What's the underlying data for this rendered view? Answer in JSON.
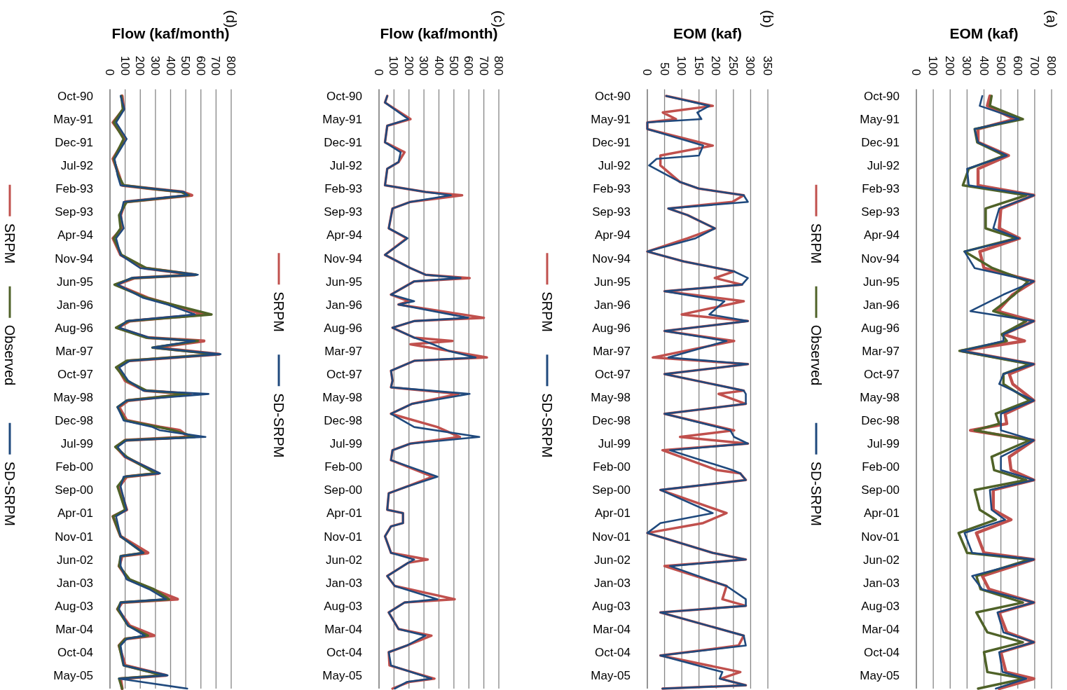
{
  "chart_data": [
    {
      "type": "line",
      "orientation": "horizontal",
      "title": "(d)",
      "xlabel": "Flow (kaf/month)",
      "legend": "left",
      "grid": "x",
      "ylim": [
        "2005-09",
        "1990-08"
      ],
      "xlim": [
        0,
        800
      ],
      "xticks": [
        0,
        100,
        200,
        300,
        400,
        500,
        600,
        700,
        800
      ],
      "yticks": [
        {
          "value": "1990-10",
          "label": "Oct-90"
        },
        {
          "value": "1991-05",
          "label": "May-91"
        },
        {
          "value": "1991-12",
          "label": "Dec-91"
        },
        {
          "value": "1992-07",
          "label": "Jul-92"
        },
        {
          "value": "1993-02",
          "label": "Feb-93"
        },
        {
          "value": "1993-09",
          "label": "Sep-93"
        },
        {
          "value": "1994-04",
          "label": "Apr-94"
        },
        {
          "value": "1994-11",
          "label": "Nov-94"
        },
        {
          "value": "1995-06",
          "label": "Jun-95"
        },
        {
          "value": "1996-01",
          "label": "Jan-96"
        },
        {
          "value": "1996-08",
          "label": "Aug-96"
        },
        {
          "value": "1997-03",
          "label": "Mar-97"
        },
        {
          "value": "1997-10",
          "label": "Oct-97"
        },
        {
          "value": "1998-05",
          "label": "May-98"
        },
        {
          "value": "1998-12",
          "label": "Dec-98"
        },
        {
          "value": "1999-07",
          "label": "Jul-99"
        },
        {
          "value": "2000-02",
          "label": "Feb-00"
        },
        {
          "value": "2000-09",
          "label": "Sep-00"
        },
        {
          "value": "2001-04",
          "label": "Apr-01"
        },
        {
          "value": "2001-11",
          "label": "Nov-01"
        },
        {
          "value": "2002-06",
          "label": "Jun-02"
        },
        {
          "value": "2003-01",
          "label": "Jan-03"
        },
        {
          "value": "2003-08",
          "label": "Aug-03"
        },
        {
          "value": "2004-03",
          "label": "Mar-04"
        },
        {
          "value": "2004-10",
          "label": "Oct-04"
        },
        {
          "value": "2005-05",
          "label": "May-05"
        }
      ],
      "x": [
        "1990-10",
        "1991-02",
        "1991-06",
        "1991-11",
        "1992-05",
        "1992-10",
        "1993-01",
        "1993-02",
        "1993-03",
        "1993-04",
        "1993-06",
        "1993-10",
        "1994-02",
        "1994-05",
        "1994-10",
        "1995-02",
        "1995-04",
        "1995-05",
        "1995-07",
        "1995-11",
        "1996-01",
        "1996-04",
        "1996-06",
        "1996-08",
        "1996-11",
        "1996-12",
        "1997-02",
        "1997-04",
        "1997-06",
        "1997-08",
        "1997-12",
        "1998-03",
        "1998-04",
        "1998-06",
        "1998-08",
        "1998-12",
        "1999-02",
        "1999-03",
        "1999-05",
        "1999-06",
        "1999-08",
        "1999-11",
        "2000-04",
        "2000-05",
        "2000-08",
        "2001-03",
        "2001-05",
        "2001-11",
        "2002-04",
        "2002-05",
        "2002-08",
        "2002-12",
        "2003-03",
        "2003-06",
        "2003-07",
        "2003-09",
        "2004-02",
        "2004-05",
        "2004-06",
        "2004-08",
        "2005-02",
        "2005-05",
        "2005-06",
        "2005-09"
      ],
      "series": [
        {
          "name": "SRPM",
          "color": "#c0504d",
          "values": [
            80,
            90,
            20,
            100,
            20,
            60,
            80,
            270,
            480,
            540,
            100,
            70,
            80,
            20,
            70,
            230,
            560,
            160,
            40,
            250,
            400,
            620,
            130,
            50,
            250,
            620,
            300,
            720,
            120,
            50,
            100,
            230,
            530,
            120,
            60,
            110,
            330,
            460,
            520,
            100,
            40,
            100,
            320,
            110,
            60,
            110,
            20,
            70,
            250,
            80,
            60,
            120,
            280,
            445,
            80,
            50,
            130,
            290,
            100,
            60,
            100,
            370,
            70,
            80
          ]
        },
        {
          "name": "Observed",
          "color": "#4f6228",
          "values": [
            75,
            85,
            25,
            90,
            25,
            55,
            90,
            270,
            470,
            520,
            110,
            60,
            70,
            25,
            75,
            240,
            570,
            150,
            30,
            240,
            410,
            670,
            120,
            40,
            240,
            580,
            280,
            700,
            110,
            40,
            110,
            240,
            520,
            110,
            50,
            100,
            320,
            420,
            560,
            100,
            35,
            110,
            300,
            100,
            50,
            100,
            20,
            70,
            220,
            70,
            60,
            130,
            290,
            390,
            70,
            50,
            120,
            250,
            100,
            60,
            90,
            350,
            60,
            80
          ]
        },
        {
          "name": "SD-SRPM",
          "color": "#1f497d",
          "values": [
            70,
            95,
            40,
            110,
            30,
            50,
            70,
            280,
            490,
            510,
            90,
            70,
            90,
            40,
            70,
            200,
            580,
            140,
            50,
            220,
            380,
            560,
            110,
            60,
            260,
            560,
            280,
            730,
            130,
            60,
            120,
            220,
            650,
            110,
            50,
            90,
            280,
            330,
            630,
            110,
            50,
            100,
            330,
            90,
            70,
            110,
            40,
            70,
            220,
            70,
            70,
            110,
            260,
            370,
            70,
            60,
            120,
            230,
            110,
            70,
            90,
            380,
            60,
            510
          ]
        }
      ]
    },
    {
      "type": "line",
      "orientation": "horizontal",
      "title": "(c)",
      "xlabel": "Flow (kaf/month)",
      "legend": "left",
      "grid": "x",
      "ylim": [
        "2005-09",
        "1990-08"
      ],
      "xlim": [
        0,
        800
      ],
      "xticks": [
        0,
        100,
        200,
        300,
        400,
        500,
        600,
        700,
        800
      ],
      "yticks": [
        {
          "value": "1990-10",
          "label": "Oct-90"
        },
        {
          "value": "1991-05",
          "label": "May-91"
        },
        {
          "value": "1991-12",
          "label": "Dec-91"
        },
        {
          "value": "1992-07",
          "label": "Jul-92"
        },
        {
          "value": "1993-02",
          "label": "Feb-93"
        },
        {
          "value": "1993-09",
          "label": "Sep-93"
        },
        {
          "value": "1994-04",
          "label": "Apr-94"
        },
        {
          "value": "1994-11",
          "label": "Nov-94"
        },
        {
          "value": "1995-06",
          "label": "Jun-95"
        },
        {
          "value": "1996-01",
          "label": "Jan-96"
        },
        {
          "value": "1996-08",
          "label": "Aug-96"
        },
        {
          "value": "1997-03",
          "label": "Mar-97"
        },
        {
          "value": "1997-10",
          "label": "Oct-97"
        },
        {
          "value": "1998-05",
          "label": "May-98"
        },
        {
          "value": "1998-12",
          "label": "Dec-98"
        },
        {
          "value": "1999-07",
          "label": "Jul-99"
        },
        {
          "value": "2000-02",
          "label": "Feb-00"
        },
        {
          "value": "2000-09",
          "label": "Sep-00"
        },
        {
          "value": "2001-04",
          "label": "Apr-01"
        },
        {
          "value": "2001-11",
          "label": "Nov-01"
        },
        {
          "value": "2002-06",
          "label": "Jun-02"
        },
        {
          "value": "2003-01",
          "label": "Jan-03"
        },
        {
          "value": "2003-08",
          "label": "Aug-03"
        },
        {
          "value": "2004-03",
          "label": "Mar-04"
        },
        {
          "value": "2004-10",
          "label": "Oct-04"
        },
        {
          "value": "2005-05",
          "label": "May-05"
        }
      ],
      "x": [
        "1990-10",
        "1990-12",
        "1991-05",
        "1991-07",
        "1991-12",
        "1992-03",
        "1992-06",
        "1992-08",
        "1993-01",
        "1993-03",
        "1993-04",
        "1993-06",
        "1993-08",
        "1994-02",
        "1994-05",
        "1994-10",
        "1995-02",
        "1995-04",
        "1995-05",
        "1995-06",
        "1995-10",
        "1995-12",
        "1996-01",
        "1996-05",
        "1996-06",
        "1996-08",
        "1996-11",
        "1996-12",
        "1997-01",
        "1997-03",
        "1997-05",
        "1997-06",
        "1997-09",
        "1997-12",
        "1998-02",
        "1998-04",
        "1998-07",
        "1998-10",
        "1999-02",
        "1999-05",
        "1999-07",
        "1999-09",
        "1999-12",
        "2000-05",
        "2000-08",
        "2000-10",
        "2001-03",
        "2001-04",
        "2001-07",
        "2001-08",
        "2001-11",
        "2002-04",
        "2002-06",
        "2002-07",
        "2002-11",
        "2003-02",
        "2003-06",
        "2003-07",
        "2003-10",
        "2004-03",
        "2004-05",
        "2004-08",
        "2004-10",
        "2005-02",
        "2005-06",
        "2005-07",
        "2005-09"
      ],
      "series": [
        {
          "name": "SRPM",
          "color": "#c0504d",
          "values": [
            55,
            40,
            210,
            55,
            40,
            170,
            130,
            55,
            40,
            310,
            555,
            210,
            90,
            65,
            185,
            40,
            210,
            310,
            605,
            235,
            80,
            200,
            130,
            700,
            235,
            90,
            235,
            490,
            210,
            465,
            720,
            235,
            80,
            90,
            80,
            530,
            220,
            80,
            390,
            540,
            210,
            90,
            80,
            360,
            185,
            65,
            55,
            160,
            160,
            80,
            40,
            80,
            325,
            195,
            55,
            105,
            505,
            170,
            65,
            130,
            350,
            185,
            65,
            70,
            370,
            200,
            90
          ]
        },
        {
          "name": "SD-SRPM",
          "color": "#1f497d",
          "values": [
            55,
            40,
            195,
            55,
            40,
            145,
            130,
            55,
            40,
            310,
            480,
            210,
            90,
            65,
            190,
            40,
            210,
            310,
            545,
            235,
            80,
            235,
            130,
            595,
            235,
            90,
            235,
            300,
            360,
            465,
            645,
            235,
            80,
            90,
            80,
            605,
            220,
            80,
            235,
            670,
            210,
            90,
            80,
            390,
            185,
            65,
            55,
            160,
            160,
            80,
            40,
            80,
            235,
            195,
            55,
            105,
            390,
            170,
            65,
            130,
            310,
            185,
            65,
            80,
            350,
            185,
            105
          ]
        }
      ]
    },
    {
      "type": "line",
      "orientation": "horizontal",
      "title": "(b)",
      "xlabel": "EOM (kaf)",
      "legend": "left",
      "grid": "x",
      "ylim": [
        "2005-09",
        "1990-08"
      ],
      "xlim": [
        0,
        350
      ],
      "xticks": [
        0,
        50,
        100,
        150,
        200,
        250,
        300,
        350
      ],
      "yticks": [
        {
          "value": "1990-10",
          "label": "Oct-90"
        },
        {
          "value": "1991-05",
          "label": "May-91"
        },
        {
          "value": "1991-12",
          "label": "Dec-91"
        },
        {
          "value": "1992-07",
          "label": "Jul-92"
        },
        {
          "value": "1993-02",
          "label": "Feb-93"
        },
        {
          "value": "1993-09",
          "label": "Sep-93"
        },
        {
          "value": "1994-04",
          "label": "Apr-94"
        },
        {
          "value": "1994-11",
          "label": "Nov-94"
        },
        {
          "value": "1995-06",
          "label": "Jun-95"
        },
        {
          "value": "1996-01",
          "label": "Jan-96"
        },
        {
          "value": "1996-08",
          "label": "Aug-96"
        },
        {
          "value": "1997-03",
          "label": "Mar-97"
        },
        {
          "value": "1997-10",
          "label": "Oct-97"
        },
        {
          "value": "1998-05",
          "label": "May-98"
        },
        {
          "value": "1998-12",
          "label": "Dec-98"
        },
        {
          "value": "1999-07",
          "label": "Jul-99"
        },
        {
          "value": "2000-02",
          "label": "Feb-00"
        },
        {
          "value": "2000-09",
          "label": "Sep-00"
        },
        {
          "value": "2001-04",
          "label": "Apr-01"
        },
        {
          "value": "2001-11",
          "label": "Nov-01"
        },
        {
          "value": "2002-06",
          "label": "Jun-02"
        },
        {
          "value": "2003-01",
          "label": "Jan-03"
        },
        {
          "value": "2003-08",
          "label": "Aug-03"
        },
        {
          "value": "2004-03",
          "label": "Mar-04"
        },
        {
          "value": "2004-10",
          "label": "Oct-04"
        },
        {
          "value": "2005-05",
          "label": "May-05"
        }
      ],
      "x": [
        "1990-10",
        "1991-01",
        "1991-03",
        "1991-05",
        "1991-06",
        "1991-08",
        "1992-01",
        "1992-04",
        "1992-05",
        "1992-07",
        "1992-12",
        "1993-02",
        "1993-04",
        "1993-06",
        "1993-08",
        "1993-10",
        "1994-02",
        "1994-05",
        "1994-09",
        "1994-12",
        "1995-03",
        "1995-05",
        "1995-07",
        "1995-09",
        "1995-12",
        "1996-04",
        "1996-06",
        "1996-09",
        "1996-12",
        "1997-05",
        "1997-07",
        "1997-10",
        "1998-03",
        "1998-04",
        "1998-07",
        "1998-10",
        "1999-03",
        "1999-05",
        "1999-07",
        "1999-09",
        "2000-03",
        "2000-04",
        "2000-06",
        "2000-09",
        "2001-04",
        "2001-07",
        "2001-10",
        "2002-04",
        "2002-06",
        "2002-08",
        "2003-02",
        "2003-06",
        "2003-08",
        "2003-10",
        "2004-05",
        "2004-08",
        "2004-11",
        "2005-04",
        "2005-06",
        "2005-08",
        "2005-09"
      ],
      "series": [
        {
          "name": "SRPM",
          "color": "#c0504d",
          "values": [
            55,
            190,
            45,
            83,
            0,
            0,
            190,
            38,
            38,
            38,
            95,
            150,
            280,
            247,
            61,
            117,
            196,
            117,
            0,
            106,
            252,
            196,
            275,
            50,
            280,
            100,
            292,
            50,
            252,
            16,
            292,
            50,
            280,
            207,
            286,
            50,
            252,
            95,
            292,
            44,
            202,
            270,
            286,
            38,
            230,
            162,
            0,
            190,
            286,
            50,
            230,
            218,
            286,
            38,
            280,
            265,
            38,
            270,
            213,
            286,
            44
          ]
        },
        {
          "name": "SD-SRPM",
          "color": "#1f497d",
          "values": [
            55,
            180,
            145,
            157,
            0,
            0,
            162,
            150,
            27,
            5,
            95,
            150,
            280,
            292,
            61,
            117,
            196,
            140,
            0,
            106,
            252,
            292,
            275,
            50,
            224,
            180,
            292,
            50,
            230,
            61,
            292,
            50,
            280,
            286,
            286,
            50,
            241,
            252,
            292,
            66,
            247,
            270,
            286,
            38,
            190,
            38,
            0,
            190,
            286,
            66,
            230,
            286,
            286,
            38,
            280,
            286,
            38,
            218,
            210,
            286,
            44
          ]
        }
      ]
    },
    {
      "type": "line",
      "orientation": "horizontal",
      "title": "(a)",
      "xlabel": "EOM (kaf)",
      "legend": "left",
      "grid": "x",
      "ylim": [
        "2005-09",
        "1990-08"
      ],
      "xlim": [
        0,
        800
      ],
      "xticks": [
        0,
        100,
        200,
        300,
        400,
        500,
        600,
        700,
        800
      ],
      "yticks": [
        {
          "value": "1990-10",
          "label": "Oct-90"
        },
        {
          "value": "1991-05",
          "label": "May-91"
        },
        {
          "value": "1991-12",
          "label": "Dec-91"
        },
        {
          "value": "1992-07",
          "label": "Jul-92"
        },
        {
          "value": "1993-02",
          "label": "Feb-93"
        },
        {
          "value": "1993-09",
          "label": "Sep-93"
        },
        {
          "value": "1994-04",
          "label": "Apr-94"
        },
        {
          "value": "1994-11",
          "label": "Nov-94"
        },
        {
          "value": "1995-06",
          "label": "Jun-95"
        },
        {
          "value": "1996-01",
          "label": "Jan-96"
        },
        {
          "value": "1996-08",
          "label": "Aug-96"
        },
        {
          "value": "1997-03",
          "label": "Mar-97"
        },
        {
          "value": "1997-10",
          "label": "Oct-97"
        },
        {
          "value": "1998-05",
          "label": "May-98"
        },
        {
          "value": "1998-12",
          "label": "Dec-98"
        },
        {
          "value": "1999-07",
          "label": "Jul-99"
        },
        {
          "value": "2000-02",
          "label": "Feb-00"
        },
        {
          "value": "2000-09",
          "label": "Sep-00"
        },
        {
          "value": "2001-04",
          "label": "Apr-01"
        },
        {
          "value": "2001-11",
          "label": "Nov-01"
        },
        {
          "value": "2002-06",
          "label": "Jun-02"
        },
        {
          "value": "2003-01",
          "label": "Jan-03"
        },
        {
          "value": "2003-08",
          "label": "Aug-03"
        },
        {
          "value": "2004-03",
          "label": "Mar-04"
        },
        {
          "value": "2004-10",
          "label": "Oct-04"
        },
        {
          "value": "2005-05",
          "label": "May-05"
        }
      ],
      "x": [
        "1990-10",
        "1991-01",
        "1991-05",
        "1991-08",
        "1991-12",
        "1992-04",
        "1992-08",
        "1993-01",
        "1993-04",
        "1993-08",
        "1994-02",
        "1994-05",
        "1994-09",
        "1995-02",
        "1995-06",
        "1995-10",
        "1996-03",
        "1996-06",
        "1996-10",
        "1996-12",
        "1997-03",
        "1997-07",
        "1997-10",
        "1998-01",
        "1998-06",
        "1998-10",
        "1999-01",
        "1999-03",
        "1999-06",
        "1999-11",
        "2000-03",
        "2000-06",
        "2000-09",
        "2001-03",
        "2001-06",
        "2001-10",
        "2002-04",
        "2002-06",
        "2002-11",
        "2003-03",
        "2003-07",
        "2003-10",
        "2004-04",
        "2004-07",
        "2004-10",
        "2005-04",
        "2005-06",
        "2005-09"
      ],
      "series": [
        {
          "name": "SRPM",
          "color": "#c0504d",
          "values": [
            435,
            420,
            580,
            365,
            365,
            545,
            365,
            365,
            695,
            500,
            490,
            610,
            375,
            400,
            695,
            570,
            480,
            695,
            515,
            640,
            265,
            695,
            550,
            570,
            695,
            525,
            535,
            320,
            695,
            550,
            560,
            695,
            455,
            455,
            560,
            355,
            400,
            695,
            390,
            430,
            695,
            490,
            535,
            695,
            500,
            530,
            695,
            490
          ]
        },
        {
          "name": "Observed",
          "color": "#4f6228",
          "values": [
            445,
            435,
            630,
            345,
            360,
            520,
            310,
            275,
            650,
            410,
            410,
            590,
            285,
            450,
            660,
            580,
            455,
            650,
            505,
            535,
            255,
            670,
            515,
            515,
            670,
            470,
            490,
            345,
            670,
            445,
            460,
            650,
            345,
            375,
            470,
            250,
            300,
            670,
            355,
            380,
            630,
            355,
            420,
            630,
            400,
            420,
            640,
            365
          ]
        },
        {
          "name": "SD-SRPM",
          "color": "#1f497d",
          "values": [
            390,
            375,
            605,
            345,
            365,
            535,
            300,
            310,
            695,
            490,
            455,
            605,
            285,
            345,
            695,
            515,
            320,
            695,
            515,
            515,
            265,
            695,
            515,
            490,
            695,
            500,
            500,
            500,
            695,
            500,
            500,
            695,
            435,
            445,
            525,
            285,
            330,
            695,
            330,
            390,
            695,
            480,
            515,
            695,
            490,
            510,
            650,
            470
          ]
        }
      ]
    }
  ]
}
